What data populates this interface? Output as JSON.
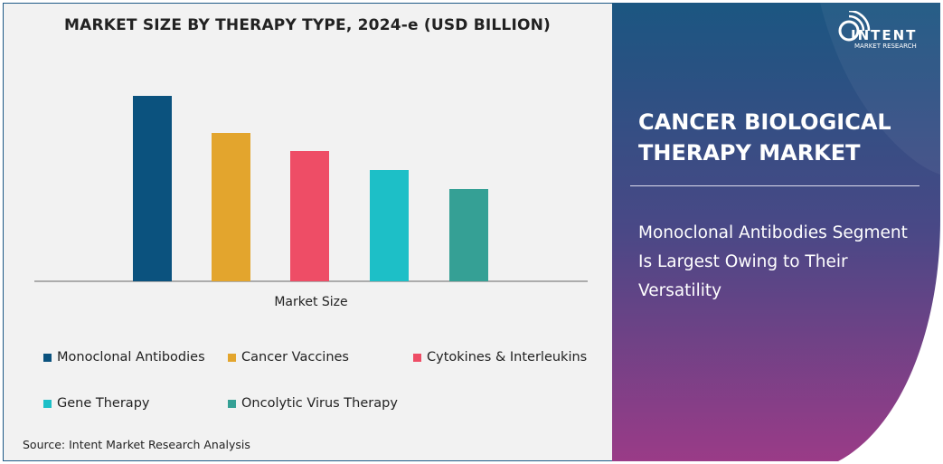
{
  "chart_data": {
    "type": "bar",
    "title": "MARKET SIZE BY THERAPY TYPE, 2024-e (USD BILLION)",
    "xlabel": "Market Size",
    "ylabel": "",
    "categories": [
      "Monoclonal Antibodies",
      "Cancer Vaccines",
      "Cytokines & Interleukins",
      "Gene Therapy",
      "Oncolytic Virus Therapy"
    ],
    "values": [
      205,
      164,
      144,
      123,
      102
    ],
    "ylim": [
      0,
      240
    ],
    "colors": [
      "#0b527e",
      "#e3a52d",
      "#ee4d66",
      "#1dbfc7",
      "#35a095"
    ],
    "grid": false,
    "legend": "bottom"
  },
  "source": "Source: Intent Market Research Analysis",
  "panel": {
    "title": "CANCER BIOLOGICAL THERAPY MARKET",
    "subtitle": "Monoclonal Antibodies Segment Is Largest Owing to Their Versatility",
    "colors": {
      "top": "#1b5681",
      "bottom": "#9a3b87"
    }
  },
  "logo": {
    "name": "INTENT",
    "tagline": "MARKET RESEARCH",
    "tm": "™"
  }
}
